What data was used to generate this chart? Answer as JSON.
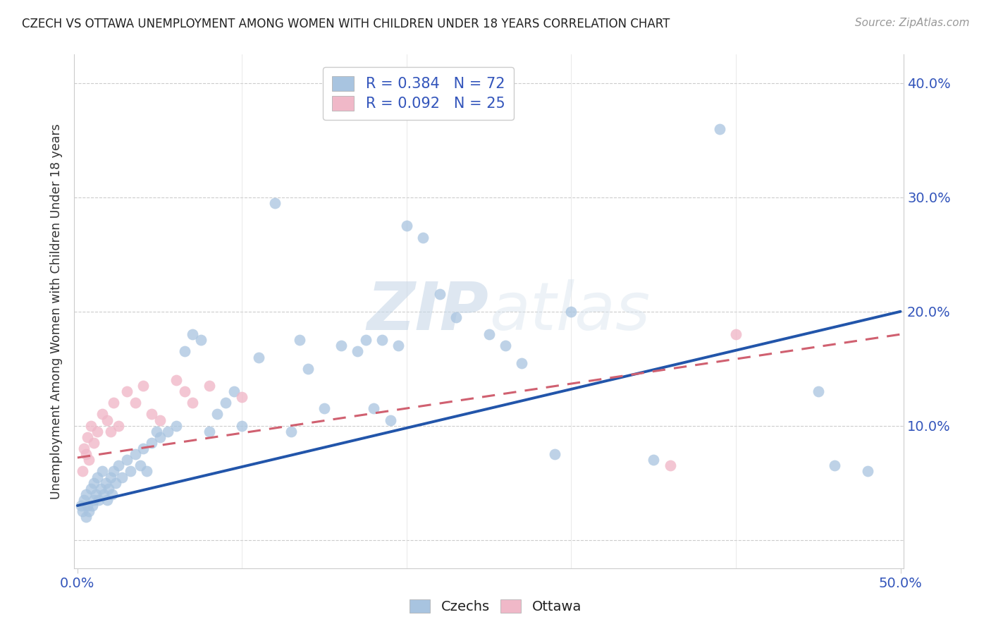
{
  "title": "CZECH VS OTTAWA UNEMPLOYMENT AMONG WOMEN WITH CHILDREN UNDER 18 YEARS CORRELATION CHART",
  "source": "Source: ZipAtlas.com",
  "ylabel": "Unemployment Among Women with Children Under 18 years",
  "xlim": [
    -0.002,
    0.502
  ],
  "ylim": [
    -0.025,
    0.425
  ],
  "x_ticks": [
    0.0,
    0.5
  ],
  "x_tick_labels": [
    "0.0%",
    "50.0%"
  ],
  "y_ticks": [
    0.0,
    0.1,
    0.2,
    0.3,
    0.4
  ],
  "y_tick_labels_right": [
    "",
    "10.0%",
    "20.0%",
    "30.0%",
    "40.0%"
  ],
  "bottom_legend": [
    "Czechs",
    "Ottawa"
  ],
  "czechs_color": "#a8c4e0",
  "ottawa_color": "#f0b8c8",
  "czechs_line_color": "#2255aa",
  "ottawa_line_color": "#d06070",
  "watermark_ZIP": "ZIP",
  "watermark_atlas": "atlas",
  "czechs_R": 0.384,
  "czechs_N": 72,
  "ottawa_R": 0.092,
  "ottawa_N": 25,
  "czechs_x": [
    0.002,
    0.003,
    0.004,
    0.005,
    0.005,
    0.006,
    0.007,
    0.008,
    0.009,
    0.01,
    0.01,
    0.011,
    0.012,
    0.013,
    0.014,
    0.015,
    0.016,
    0.017,
    0.018,
    0.019,
    0.02,
    0.021,
    0.022,
    0.023,
    0.025,
    0.027,
    0.03,
    0.032,
    0.035,
    0.038,
    0.04,
    0.042,
    0.045,
    0.048,
    0.05,
    0.055,
    0.06,
    0.065,
    0.07,
    0.075,
    0.08,
    0.085,
    0.09,
    0.095,
    0.1,
    0.11,
    0.12,
    0.13,
    0.135,
    0.14,
    0.15,
    0.16,
    0.17,
    0.175,
    0.18,
    0.185,
    0.19,
    0.195,
    0.2,
    0.21,
    0.22,
    0.23,
    0.25,
    0.26,
    0.27,
    0.29,
    0.3,
    0.35,
    0.39,
    0.45,
    0.46,
    0.48
  ],
  "czechs_y": [
    0.03,
    0.025,
    0.035,
    0.02,
    0.04,
    0.03,
    0.025,
    0.045,
    0.03,
    0.035,
    0.05,
    0.04,
    0.055,
    0.035,
    0.045,
    0.06,
    0.04,
    0.05,
    0.035,
    0.045,
    0.055,
    0.04,
    0.06,
    0.05,
    0.065,
    0.055,
    0.07,
    0.06,
    0.075,
    0.065,
    0.08,
    0.06,
    0.085,
    0.095,
    0.09,
    0.095,
    0.1,
    0.165,
    0.18,
    0.175,
    0.095,
    0.11,
    0.12,
    0.13,
    0.1,
    0.16,
    0.295,
    0.095,
    0.175,
    0.15,
    0.115,
    0.17,
    0.165,
    0.175,
    0.115,
    0.175,
    0.105,
    0.17,
    0.275,
    0.265,
    0.215,
    0.195,
    0.18,
    0.17,
    0.155,
    0.075,
    0.2,
    0.07,
    0.36,
    0.13,
    0.065,
    0.06
  ],
  "ottawa_x": [
    0.003,
    0.004,
    0.005,
    0.006,
    0.007,
    0.008,
    0.01,
    0.012,
    0.015,
    0.018,
    0.02,
    0.022,
    0.025,
    0.03,
    0.035,
    0.04,
    0.045,
    0.05,
    0.06,
    0.065,
    0.07,
    0.08,
    0.1,
    0.36,
    0.4
  ],
  "ottawa_y": [
    0.06,
    0.08,
    0.075,
    0.09,
    0.07,
    0.1,
    0.085,
    0.095,
    0.11,
    0.105,
    0.095,
    0.12,
    0.1,
    0.13,
    0.12,
    0.135,
    0.11,
    0.105,
    0.14,
    0.13,
    0.12,
    0.135,
    0.125,
    0.065,
    0.18
  ],
  "czechs_line_x": [
    0.0,
    0.5
  ],
  "czechs_line_y": [
    0.03,
    0.2
  ],
  "ottawa_line_x": [
    0.0,
    0.5
  ],
  "ottawa_line_y": [
    0.072,
    0.18
  ]
}
